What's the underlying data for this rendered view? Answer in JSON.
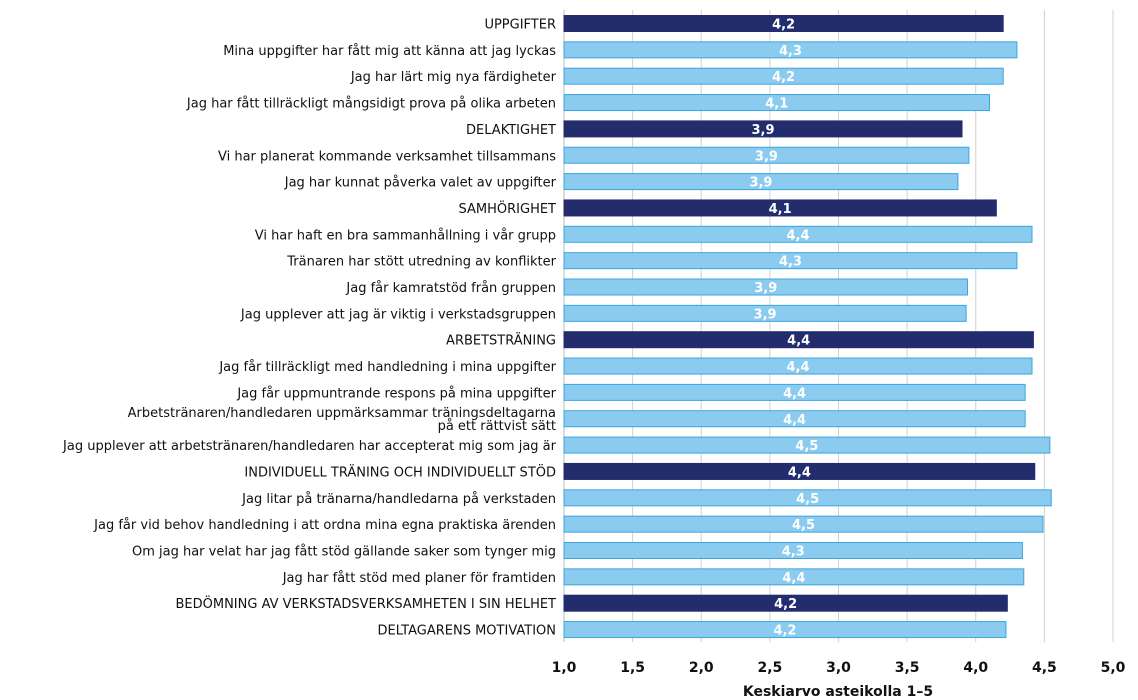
{
  "chart_data": {
    "type": "bar",
    "orientation": "horizontal",
    "xlabel": "Keskiarvo asteikolla 1–5",
    "xlim": [
      1.0,
      5.0
    ],
    "ticks": [
      "1,0",
      "1,5",
      "2,0",
      "2,5",
      "3,0",
      "3,5",
      "4,0",
      "4,5",
      "5,0"
    ],
    "grid": "vertical",
    "colors": {
      "heading": "#232d6e",
      "item": "#8ccbf0",
      "item_border": "#3aa6dd",
      "grid": "#d0d0d0"
    },
    "rows": [
      {
        "label": "UPPGIFTER",
        "value": 4.2,
        "value_label": "4,2",
        "kind": "heading"
      },
      {
        "label": "Mina uppgifter har fått mig att känna att jag lyckas",
        "value": 4.3,
        "value_label": "4,3",
        "kind": "item"
      },
      {
        "label": "Jag har lärt mig nya färdigheter",
        "value": 4.2,
        "value_label": "4,2",
        "kind": "item"
      },
      {
        "label": "Jag har fått tillräckligt mångsidigt prova på olika arbeten",
        "value": 4.1,
        "value_label": "4,1",
        "kind": "item"
      },
      {
        "label": "DELAKTIGHET",
        "value": 3.9,
        "value_label": "3,9",
        "kind": "heading"
      },
      {
        "label": "Vi har planerat kommande verksamhet tillsammans",
        "value": 3.95,
        "value_label": "3,9",
        "kind": "item"
      },
      {
        "label": "Jag har kunnat påverka valet av uppgifter",
        "value": 3.87,
        "value_label": "3,9",
        "kind": "item"
      },
      {
        "label": "SAMHÖRIGHET",
        "value": 4.15,
        "value_label": "4,1",
        "kind": "heading"
      },
      {
        "label": "Vi har haft en bra sammanhållning i vår grupp",
        "value": 4.41,
        "value_label": "4,4",
        "kind": "item"
      },
      {
        "label": "Tränaren har stött utredning av konflikter",
        "value": 4.3,
        "value_label": "4,3",
        "kind": "item"
      },
      {
        "label": "Jag får kamratstöd från gruppen",
        "value": 3.94,
        "value_label": "3,9",
        "kind": "item"
      },
      {
        "label": "Jag upplever att jag är viktig i verkstadsgruppen",
        "value": 3.93,
        "value_label": "3,9",
        "kind": "item"
      },
      {
        "label": "ARBETSTRÄNING",
        "value": 4.42,
        "value_label": "4,4",
        "kind": "heading"
      },
      {
        "label": "Jag får tillräckligt med handledning i mina uppgifter",
        "value": 4.41,
        "value_label": "4,4",
        "kind": "item"
      },
      {
        "label": "Jag får uppmuntrande respons på mina uppgifter",
        "value": 4.36,
        "value_label": "4,4",
        "kind": "item"
      },
      {
        "label": [
          "Arbetstränaren/handledaren uppmärksammar träningsdeltagarna",
          "på ett rättvist sätt"
        ],
        "value": 4.36,
        "value_label": "4,4",
        "kind": "item"
      },
      {
        "label": "Jag upplever att arbetstränaren/handledaren har accepterat mig som jag är",
        "value": 4.54,
        "value_label": "4,5",
        "kind": "item"
      },
      {
        "label": "INDIVIDUELL TRÄNING OCH INDIVIDUELLT STÖD",
        "value": 4.43,
        "value_label": "4,4",
        "kind": "heading"
      },
      {
        "label": "Jag litar på tränarna/handledarna på verkstaden",
        "value": 4.55,
        "value_label": "4,5",
        "kind": "item"
      },
      {
        "label": "Jag får vid behov handledning i att ordna mina egna praktiska ärenden",
        "value": 4.49,
        "value_label": "4,5",
        "kind": "item"
      },
      {
        "label": "Om jag har velat har jag fått stöd gällande saker som tynger mig",
        "value": 4.34,
        "value_label": "4,3",
        "kind": "item"
      },
      {
        "label": "Jag har fått stöd med planer för framtiden",
        "value": 4.35,
        "value_label": "4,4",
        "kind": "item"
      },
      {
        "label": "BEDÖMNING AV VERKSTADSVERKSAMHETEN I SIN HELHET",
        "value": 4.23,
        "value_label": "4,2",
        "kind": "heading"
      },
      {
        "label": "DELTAGARENS MOTIVATION",
        "value": 4.22,
        "value_label": "4,2",
        "kind": "item"
      }
    ]
  }
}
